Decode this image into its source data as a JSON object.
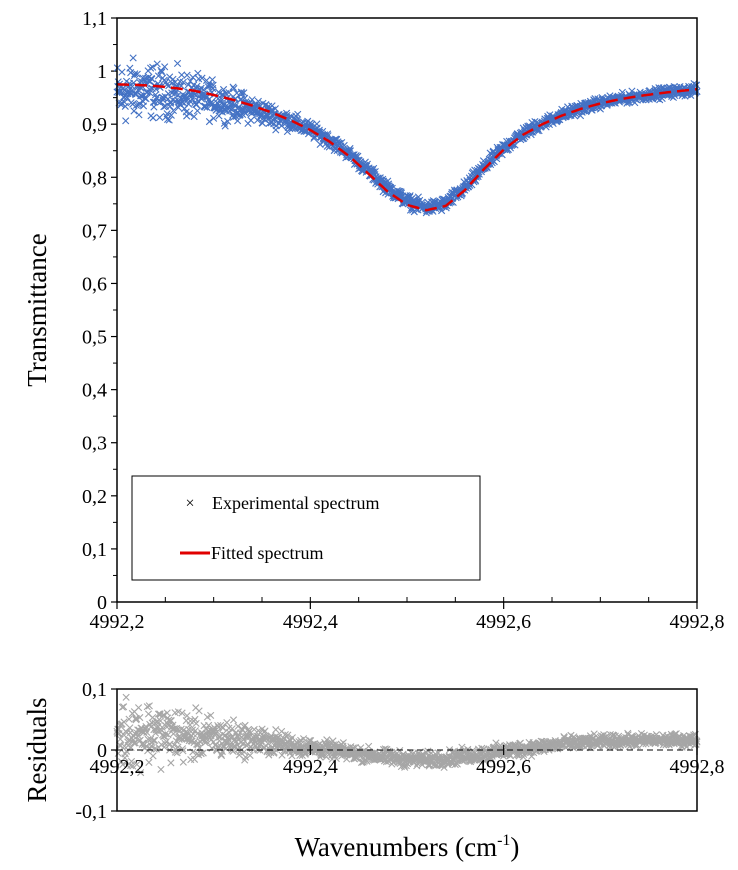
{
  "chart_data": [
    {
      "type": "scatter",
      "ylabel": "Transmittance",
      "xlim": [
        4992.2,
        4992.8
      ],
      "ylim": [
        0,
        1.1
      ],
      "x_ticks": [
        4992.2,
        4992.4,
        4992.6,
        4992.8
      ],
      "x_tick_labels": [
        "4992,2",
        "4992,4",
        "4992,6",
        "4992,8"
      ],
      "y_ticks": [
        0,
        0.1,
        0.2,
        0.3,
        0.4,
        0.5,
        0.6,
        0.7,
        0.8,
        0.9,
        1.0,
        1.1
      ],
      "y_tick_labels": [
        "0",
        "0,1",
        "0,2",
        "0,3",
        "0,4",
        "0,5",
        "0,6",
        "0,7",
        "0,8",
        "0,9",
        "1",
        "1,1"
      ],
      "grid": false,
      "legend_position": "bottom-left",
      "series": [
        {
          "name": "Experimental spectrum",
          "marker": "x",
          "color": "#4472C4",
          "x": [
            4992.2,
            4992.22,
            4992.24,
            4992.26,
            4992.28,
            4992.3,
            4992.32,
            4992.34,
            4992.36,
            4992.38,
            4992.4,
            4992.42,
            4992.44,
            4992.46,
            4992.48,
            4992.5,
            4992.52,
            4992.54,
            4992.56,
            4992.58,
            4992.6,
            4992.62,
            4992.64,
            4992.66,
            4992.68,
            4992.7,
            4992.72,
            4992.74,
            4992.76,
            4992.78,
            4992.8
          ],
          "y": [
            0.955,
            0.965,
            0.962,
            0.958,
            0.952,
            0.945,
            0.937,
            0.928,
            0.917,
            0.905,
            0.89,
            0.87,
            0.845,
            0.812,
            0.78,
            0.755,
            0.742,
            0.75,
            0.78,
            0.82,
            0.855,
            0.882,
            0.902,
            0.917,
            0.93,
            0.94,
            0.947,
            0.953,
            0.958,
            0.962,
            0.965
          ],
          "scatter_width": [
            0.05,
            0.045,
            0.04,
            0.036,
            0.032,
            0.028,
            0.024,
            0.02,
            0.017,
            0.014,
            0.012,
            0.011,
            0.01,
            0.01,
            0.01,
            0.01,
            0.01,
            0.01,
            0.01,
            0.01,
            0.01,
            0.01,
            0.009,
            0.009,
            0.009,
            0.008,
            0.008,
            0.008,
            0.008,
            0.008,
            0.008
          ]
        },
        {
          "name": "Fitted spectrum",
          "type": "line",
          "style": "dashed",
          "color": "#E00000",
          "x": [
            4992.2,
            4992.22,
            4992.24,
            4992.26,
            4992.28,
            4992.3,
            4992.32,
            4992.34,
            4992.36,
            4992.38,
            4992.4,
            4992.42,
            4992.44,
            4992.46,
            4992.48,
            4992.5,
            4992.52,
            4992.54,
            4992.56,
            4992.58,
            4992.6,
            4992.62,
            4992.64,
            4992.66,
            4992.68,
            4992.7,
            4992.72,
            4992.74,
            4992.76,
            4992.78,
            4992.8
          ],
          "y": [
            0.975,
            0.974,
            0.972,
            0.968,
            0.963,
            0.955,
            0.946,
            0.935,
            0.922,
            0.907,
            0.889,
            0.867,
            0.84,
            0.807,
            0.773,
            0.748,
            0.738,
            0.746,
            0.776,
            0.816,
            0.852,
            0.88,
            0.9,
            0.916,
            0.929,
            0.939,
            0.947,
            0.953,
            0.958,
            0.962,
            0.966
          ]
        }
      ]
    },
    {
      "type": "scatter",
      "ylabel": "Residuals",
      "xlabel": "Wavenumbers (cm",
      "xlabel_superscript": "-1",
      "xlabel_suffix": ")",
      "xlim": [
        4992.2,
        4992.8
      ],
      "ylim": [
        -0.1,
        0.1
      ],
      "x_ticks": [
        4992.2,
        4992.4,
        4992.6,
        4992.8
      ],
      "x_tick_labels": [
        "4992,2",
        "4992,4",
        "4992,6",
        "4992,8"
      ],
      "y_ticks": [
        -0.1,
        0,
        0.1
      ],
      "y_tick_labels": [
        "-0,1",
        "0",
        "0,1"
      ],
      "grid": false,
      "series": [
        {
          "marker": "x",
          "color": "#A6A6A6",
          "x": [
            4992.2,
            4992.22,
            4992.24,
            4992.26,
            4992.28,
            4992.3,
            4992.32,
            4992.34,
            4992.36,
            4992.38,
            4992.4,
            4992.42,
            4992.44,
            4992.46,
            4992.48,
            4992.5,
            4992.52,
            4992.54,
            4992.56,
            4992.58,
            4992.6,
            4992.62,
            4992.64,
            4992.66,
            4992.68,
            4992.7,
            4992.72,
            4992.74,
            4992.76,
            4992.78,
            4992.8
          ],
          "y": [
            0.025,
            0.03,
            0.028,
            0.025,
            0.022,
            0.02,
            0.018,
            0.015,
            0.012,
            0.008,
            0.004,
            0.0,
            -0.004,
            -0.008,
            -0.012,
            -0.015,
            -0.016,
            -0.014,
            -0.01,
            -0.006,
            -0.002,
            0.002,
            0.006,
            0.01,
            0.012,
            0.014,
            0.015,
            0.016,
            0.016,
            0.016,
            0.016
          ],
          "scatter_width": [
            0.05,
            0.045,
            0.04,
            0.036,
            0.032,
            0.028,
            0.024,
            0.02,
            0.017,
            0.014,
            0.012,
            0.011,
            0.01,
            0.01,
            0.01,
            0.01,
            0.01,
            0.01,
            0.01,
            0.01,
            0.01,
            0.01,
            0.009,
            0.009,
            0.009,
            0.008,
            0.008,
            0.008,
            0.008,
            0.008,
            0.008
          ]
        }
      ]
    }
  ]
}
